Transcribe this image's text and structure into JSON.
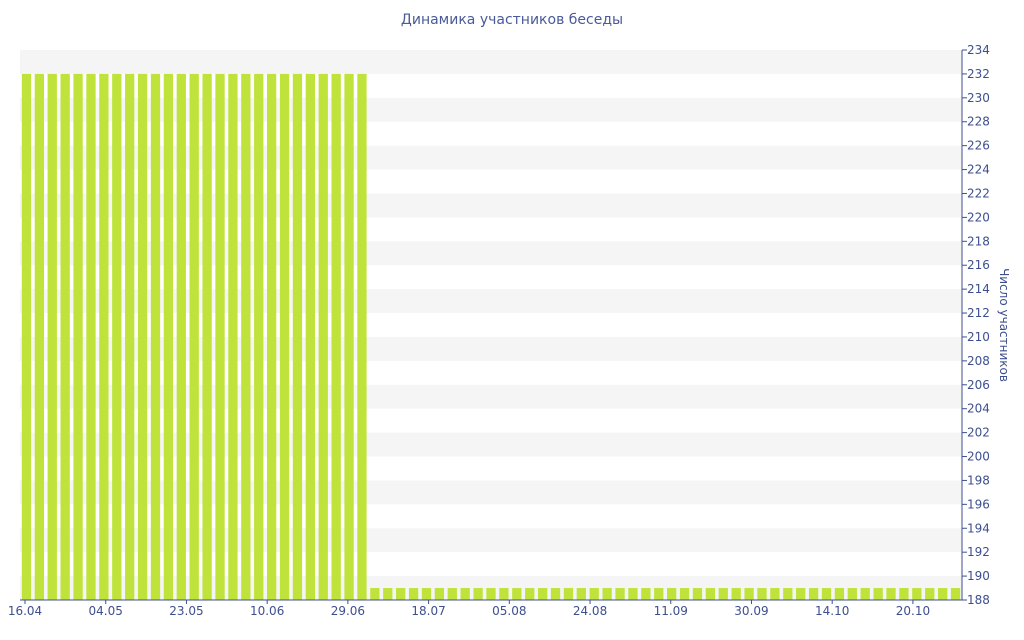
{
  "chart_data": {
    "type": "bar",
    "title": "Динамика участников беседы",
    "ylabel": "Число участников",
    "xlabel": "",
    "ylim": [
      188,
      234
    ],
    "y_ticks": [
      188,
      190,
      192,
      194,
      196,
      198,
      200,
      202,
      204,
      206,
      208,
      210,
      212,
      214,
      216,
      218,
      220,
      222,
      224,
      226,
      228,
      230,
      232,
      234
    ],
    "x_ticks": [
      "16.04",
      "04.05",
      "23.05",
      "10.06",
      "29.06",
      "18.07",
      "05.08",
      "24.08",
      "11.09",
      "30.09",
      "14.10",
      "20.10"
    ],
    "bar_color": "#bfe33a",
    "series": [
      {
        "values": [
          232,
          232,
          232,
          232,
          232,
          232,
          232,
          232,
          232,
          232,
          232,
          232,
          232,
          232,
          232,
          232,
          232,
          232,
          232,
          232,
          232,
          232,
          232,
          232,
          232,
          232,
          232,
          189,
          189,
          189,
          189,
          189,
          189,
          189,
          189,
          189,
          189,
          189,
          189,
          189,
          189,
          189,
          189,
          189,
          189,
          189,
          189,
          189,
          189,
          189,
          189,
          189,
          189,
          189,
          189,
          189,
          189,
          189,
          189,
          189,
          189,
          189,
          189,
          189,
          189,
          189,
          189,
          189,
          189,
          189,
          189,
          189,
          189
        ]
      }
    ]
  }
}
